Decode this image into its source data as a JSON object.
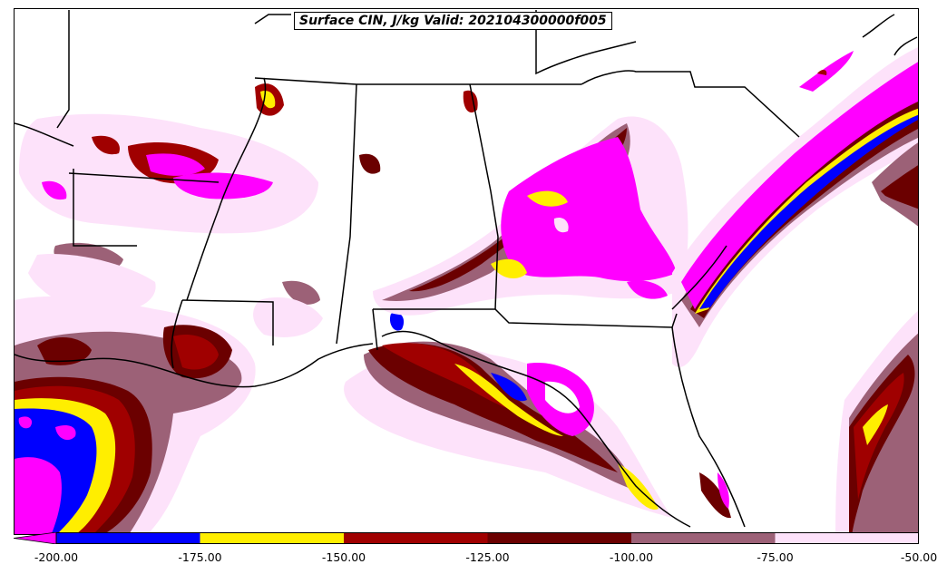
{
  "title": "Surface CIN, J/kg Valid: 202104300000f005",
  "colorbar": {
    "ticks": [
      "-200.00",
      "-175.00",
      "-150.00",
      "-125.00",
      "-100.00",
      "-75.00",
      "-50.00"
    ],
    "bins": [
      {
        "from": -200,
        "to": -175,
        "color": "#0000ff"
      },
      {
        "from": -175,
        "to": -150,
        "color": "#ffee00"
      },
      {
        "from": -150,
        "to": -125,
        "color": "#a00000"
      },
      {
        "from": -125,
        "to": -100,
        "color": "#6b0000"
      },
      {
        "from": -100,
        "to": -75,
        "color": "#9c6177"
      },
      {
        "from": -75,
        "to": -50,
        "color": "#fde2fa"
      }
    ],
    "extend_below_color": "#ff00ff"
  },
  "colors": {
    "very_light_pink": "#fde2fa",
    "mauve": "#9c6177",
    "dark_red": "#6b0000",
    "red": "#a00000",
    "yellow": "#ffee00",
    "blue": "#0000ff",
    "magenta": "#ff00ff",
    "border": "#000000"
  }
}
